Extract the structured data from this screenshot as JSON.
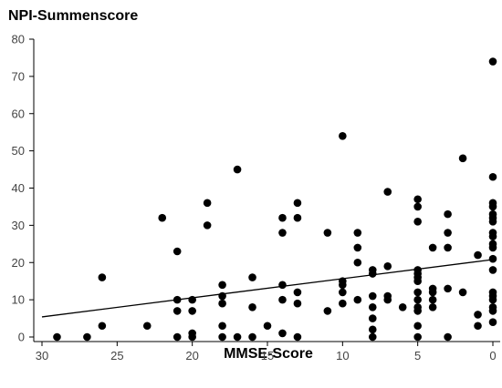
{
  "chart_data": {
    "type": "scatter",
    "ylabel": "NPI-Summenscore",
    "xlabel": "MMSE-Score",
    "xlim": [
      30,
      0
    ],
    "ylim": [
      0,
      80
    ],
    "x_reversed": true,
    "grid": false,
    "x_ticks": [
      "30",
      "25",
      "20",
      "15",
      "10",
      "5",
      "0"
    ],
    "y_ticks": [
      "0",
      "10",
      "20",
      "30",
      "40",
      "50",
      "60",
      "70",
      "80"
    ],
    "x_tick_values": [
      30,
      25,
      20,
      15,
      10,
      5,
      0
    ],
    "y_tick_values": [
      0,
      10,
      20,
      30,
      40,
      50,
      60,
      70,
      80
    ],
    "points": [
      [
        29,
        0
      ],
      [
        27,
        0
      ],
      [
        26,
        16
      ],
      [
        26,
        3
      ],
      [
        23,
        3
      ],
      [
        22,
        32
      ],
      [
        21,
        23
      ],
      [
        21,
        10
      ],
      [
        21,
        7
      ],
      [
        21,
        0
      ],
      [
        20,
        10
      ],
      [
        20,
        7
      ],
      [
        20,
        1
      ],
      [
        20,
        0
      ],
      [
        19,
        36
      ],
      [
        19,
        30
      ],
      [
        18,
        14
      ],
      [
        18,
        11
      ],
      [
        18,
        9
      ],
      [
        18,
        3
      ],
      [
        18,
        0
      ],
      [
        17,
        45
      ],
      [
        17,
        0
      ],
      [
        16,
        16
      ],
      [
        16,
        8
      ],
      [
        16,
        0
      ],
      [
        15,
        3
      ],
      [
        14,
        32
      ],
      [
        14,
        28
      ],
      [
        14,
        14
      ],
      [
        14,
        10
      ],
      [
        14,
        1
      ],
      [
        13,
        36
      ],
      [
        13,
        32
      ],
      [
        13,
        12
      ],
      [
        13,
        9
      ],
      [
        13,
        0
      ],
      [
        11,
        28
      ],
      [
        11,
        7
      ],
      [
        10,
        54
      ],
      [
        10,
        15
      ],
      [
        10,
        14
      ],
      [
        10,
        12
      ],
      [
        10,
        9
      ],
      [
        9,
        28
      ],
      [
        9,
        24
      ],
      [
        9,
        20
      ],
      [
        9,
        10
      ],
      [
        8,
        18
      ],
      [
        8,
        17
      ],
      [
        8,
        11
      ],
      [
        8,
        8
      ],
      [
        8,
        5
      ],
      [
        8,
        2
      ],
      [
        8,
        0
      ],
      [
        7,
        39
      ],
      [
        7,
        19
      ],
      [
        7,
        11
      ],
      [
        7,
        10
      ],
      [
        6,
        8
      ],
      [
        5,
        37
      ],
      [
        5,
        35
      ],
      [
        5,
        31
      ],
      [
        5,
        18
      ],
      [
        5,
        17
      ],
      [
        5,
        16
      ],
      [
        5,
        15
      ],
      [
        5,
        12
      ],
      [
        5,
        10
      ],
      [
        5,
        8
      ],
      [
        5,
        7
      ],
      [
        5,
        3
      ],
      [
        5,
        0
      ],
      [
        4,
        24
      ],
      [
        4,
        13
      ],
      [
        4,
        12
      ],
      [
        4,
        10
      ],
      [
        4,
        8
      ],
      [
        3,
        33
      ],
      [
        3,
        28
      ],
      [
        3,
        24
      ],
      [
        3,
        13
      ],
      [
        3,
        0
      ],
      [
        2,
        48
      ],
      [
        2,
        12
      ],
      [
        1,
        22
      ],
      [
        1,
        6
      ],
      [
        1,
        3
      ],
      [
        0,
        74
      ],
      [
        0,
        43
      ],
      [
        0,
        36
      ],
      [
        0,
        35
      ],
      [
        0,
        33
      ],
      [
        0,
        32
      ],
      [
        0,
        31
      ],
      [
        0,
        28
      ],
      [
        0,
        27
      ],
      [
        0,
        25
      ],
      [
        0,
        24
      ],
      [
        0,
        21
      ],
      [
        0,
        18
      ],
      [
        0,
        12
      ],
      [
        0,
        11
      ],
      [
        0,
        10
      ],
      [
        0,
        8
      ],
      [
        0,
        7
      ],
      [
        0,
        4
      ]
    ],
    "trendline": {
      "x": [
        30,
        0
      ],
      "y": [
        5.4,
        20.8
      ]
    }
  }
}
